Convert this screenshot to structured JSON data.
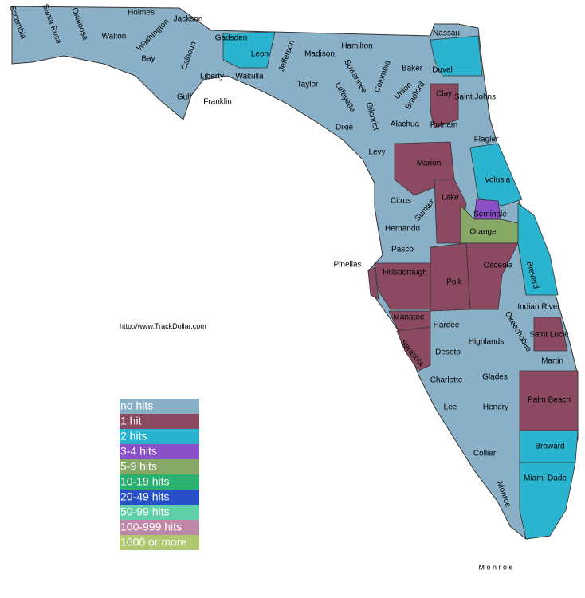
{
  "source_url": "http://www.TrackDollar.com",
  "legend": [
    {
      "label": "no hits",
      "color": "#8ab0c8"
    },
    {
      "label": "1 hit",
      "color": "#8b4a62"
    },
    {
      "label": "2 hits",
      "color": "#2ab4d0"
    },
    {
      "label": "3-4 hits",
      "color": "#8a50c8"
    },
    {
      "label": "5-9 hits",
      "color": "#88a868"
    },
    {
      "label": "10-19 hits",
      "color": "#2ab070"
    },
    {
      "label": "20-49 hits",
      "color": "#2850c8"
    },
    {
      "label": "50-99 hits",
      "color": "#60d0a8"
    },
    {
      "label": "100-999 hits",
      "color": "#c088a8"
    },
    {
      "label": "1000 or more",
      "color": "#b0c870"
    }
  ],
  "counties": [
    {
      "name": "Escambia",
      "category": "no hits"
    },
    {
      "name": "Santa Rosa",
      "category": "no hits"
    },
    {
      "name": "Okaloosa",
      "category": "no hits"
    },
    {
      "name": "Walton",
      "category": "no hits"
    },
    {
      "name": "Holmes",
      "category": "no hits"
    },
    {
      "name": "Washington",
      "category": "no hits"
    },
    {
      "name": "Jackson",
      "category": "no hits"
    },
    {
      "name": "Bay",
      "category": "no hits"
    },
    {
      "name": "Calhoun",
      "category": "no hits"
    },
    {
      "name": "Gadsden",
      "category": "no hits"
    },
    {
      "name": "Leon",
      "category": "2 hits"
    },
    {
      "name": "Jefferson",
      "category": "no hits"
    },
    {
      "name": "Madison",
      "category": "no hits"
    },
    {
      "name": "Hamilton",
      "category": "no hits"
    },
    {
      "name": "Suwannee",
      "category": "no hits"
    },
    {
      "name": "Columbia",
      "category": "no hits"
    },
    {
      "name": "Baker",
      "category": "no hits"
    },
    {
      "name": "Nassau",
      "category": "no hits"
    },
    {
      "name": "Duval",
      "category": "2 hits"
    },
    {
      "name": "Liberty",
      "category": "no hits"
    },
    {
      "name": "Gulf",
      "category": "no hits"
    },
    {
      "name": "Franklin",
      "category": "no hits"
    },
    {
      "name": "Wakulla",
      "category": "no hits"
    },
    {
      "name": "Taylor",
      "category": "no hits"
    },
    {
      "name": "Lafayette",
      "category": "no hits"
    },
    {
      "name": "Gilchrist",
      "category": "no hits"
    },
    {
      "name": "Union",
      "category": "no hits"
    },
    {
      "name": "Bradford",
      "category": "no hits"
    },
    {
      "name": "Clay",
      "category": "1 hit"
    },
    {
      "name": "Saint Johns",
      "category": "no hits"
    },
    {
      "name": "Dixie",
      "category": "no hits"
    },
    {
      "name": "Alachua",
      "category": "no hits"
    },
    {
      "name": "Putnam",
      "category": "no hits"
    },
    {
      "name": "Flagler",
      "category": "no hits"
    },
    {
      "name": "Levy",
      "category": "no hits"
    },
    {
      "name": "Marion",
      "category": "1 hit"
    },
    {
      "name": "Volusia",
      "category": "2 hits"
    },
    {
      "name": "Citrus",
      "category": "no hits"
    },
    {
      "name": "Sumter",
      "category": "no hits"
    },
    {
      "name": "Lake",
      "category": "1 hit"
    },
    {
      "name": "Seminole",
      "category": "3-4 hits"
    },
    {
      "name": "Orange",
      "category": "5-9 hits"
    },
    {
      "name": "Hernando",
      "category": "no hits"
    },
    {
      "name": "Pasco",
      "category": "no hits"
    },
    {
      "name": "Pinellas",
      "category": "1 hit"
    },
    {
      "name": "Hillsborough",
      "category": "1 hit"
    },
    {
      "name": "Polk",
      "category": "1 hit"
    },
    {
      "name": "Osceola",
      "category": "1 hit"
    },
    {
      "name": "Brevard",
      "category": "2 hits"
    },
    {
      "name": "Indian River",
      "category": "no hits"
    },
    {
      "name": "Manatee",
      "category": "1 hit"
    },
    {
      "name": "Hardee",
      "category": "no hits"
    },
    {
      "name": "Okeechobee",
      "category": "no hits"
    },
    {
      "name": "Saint Lucie",
      "category": "1 hit"
    },
    {
      "name": "Highlands",
      "category": "no hits"
    },
    {
      "name": "Sarasota",
      "category": "1 hit"
    },
    {
      "name": "Desoto",
      "category": "no hits"
    },
    {
      "name": "Charlotte",
      "category": "no hits"
    },
    {
      "name": "Glades",
      "category": "no hits"
    },
    {
      "name": "Martin",
      "category": "no hits"
    },
    {
      "name": "Lee",
      "category": "no hits"
    },
    {
      "name": "Hendry",
      "category": "no hits"
    },
    {
      "name": "Palm Beach",
      "category": "1 hit"
    },
    {
      "name": "Collier",
      "category": "no hits"
    },
    {
      "name": "Broward",
      "category": "2 hits"
    },
    {
      "name": "Miami-Dade",
      "category": "2 hits"
    },
    {
      "name": "Monroe",
      "category": "no hits"
    }
  ],
  "keys_label": "M o n r o e"
}
